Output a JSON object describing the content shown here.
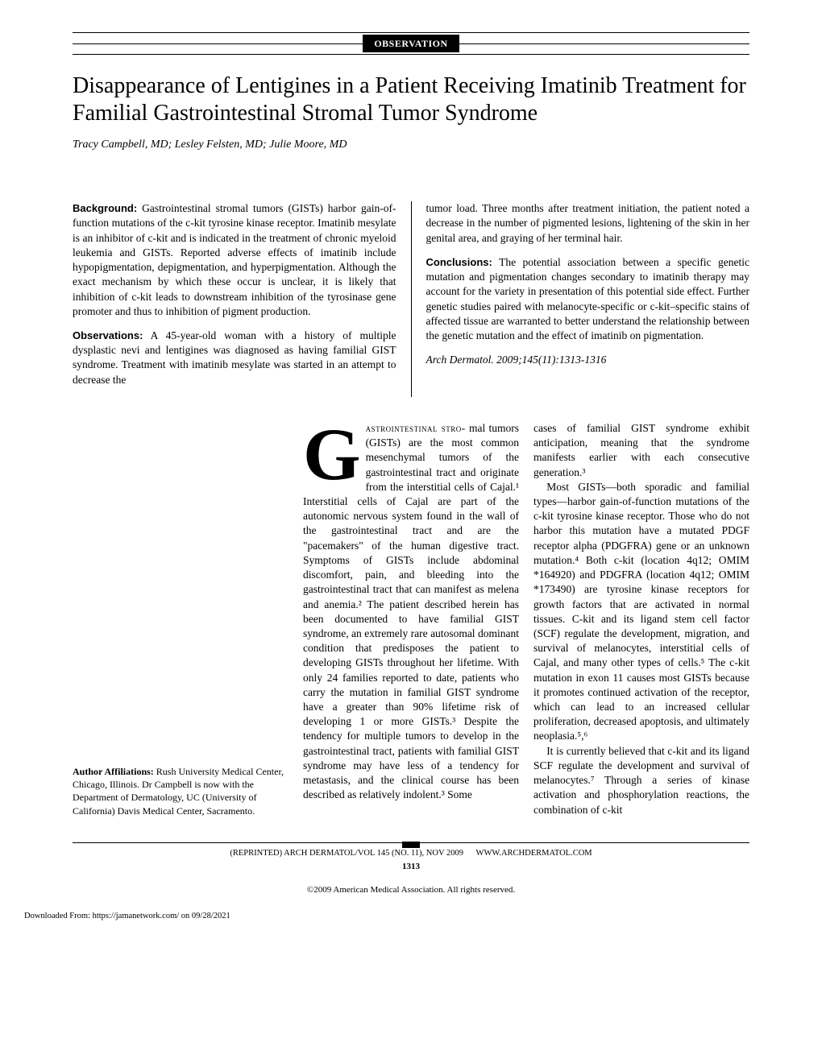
{
  "header": {
    "section_label": "OBSERVATION"
  },
  "title": "Disappearance of Lentigines in a Patient Receiving Imatinib Treatment for Familial Gastrointestinal Stromal Tumor Syndrome",
  "authors": "Tracy Campbell, MD; Lesley Felsten, MD; Julie Moore, MD",
  "abstract": {
    "background_label": "Background:",
    "background": " Gastrointestinal stromal tumors (GISTs) harbor gain-of-function mutations of the c-kit tyrosine kinase receptor. Imatinib mesylate is an inhibitor of c-kit and is indicated in the treatment of chronic myeloid leukemia and GISTs. Reported adverse effects of imatinib include hypopigmentation, depigmentation, and hyperpigmentation. Although the exact mechanism by which these occur is unclear, it is likely that inhibition of c-kit leads to downstream inhibition of the tyrosinase gene promoter and thus to inhibition of pigment production.",
    "observations_label": "Observations:",
    "observations": " A 45-year-old woman with a history of multiple dysplastic nevi and lentigines was diagnosed as having familial GIST syndrome. Treatment with imatinib mesylate was started in an attempt to decrease the",
    "col2_cont": "tumor load. Three months after treatment initiation, the patient noted a decrease in the number of pigmented lesions, lightening of the skin in her genital area, and graying of her terminal hair.",
    "conclusions_label": "Conclusions:",
    "conclusions": " The potential association between a specific genetic mutation and pigmentation changes secondary to imatinib therapy may account for the variety in presentation of this potential side effect. Further genetic studies paired with melanocyte-specific or c-kit–specific stains of affected tissue are warranted to better understand the relationship between the genetic mutation and the effect of imatinib on pigmentation.",
    "citation": "Arch Dermatol. 2009;145(11):1313-1316"
  },
  "affiliations": {
    "label": "Author Affiliations:",
    "text": " Rush University Medical Center, Chicago, Illinois. Dr Campbell is now with the Department of Dermatology, UC (University of California) Davis Medical Center, Sacramento."
  },
  "body": {
    "dropcap": "G",
    "lead_smallcaps": "astrointestinal stro-",
    "col1": "mal tumors (GISTs) are the most common mesenchymal tumors of the gastrointestinal tract and originate from the interstitial cells of Cajal.¹ Interstitial cells of Cajal are part of the autonomic nervous system found in the wall of the gastrointestinal tract and are the \"pacemakers\" of the human digestive tract. Symptoms of GISTs include abdominal discomfort, pain, and bleeding into the gastrointestinal tract that can manifest as melena and anemia.² The patient described herein has been documented to have familial GIST syndrome, an extremely rare autosomal dominant condition that predisposes the patient to developing GISTs throughout her lifetime. With only 24 families reported to date, patients who carry the mutation in familial GIST syndrome have a greater than 90% lifetime risk of developing 1 or more GISTs.³ Despite the tendency for multiple tumors to develop in the gastrointestinal tract, patients with familial GIST syndrome may have less of a tendency for metastasis, and the clinical course has been described as relatively indolent.³ Some",
    "col2_p1": "cases of familial GIST syndrome exhibit anticipation, meaning that the syndrome manifests earlier with each consecutive generation.³",
    "col2_p2": "Most GISTs—both sporadic and familial types—harbor gain-of-function mutations of the c-kit tyrosine kinase receptor. Those who do not harbor this mutation have a mutated PDGF receptor alpha (PDGFRA) gene or an unknown mutation.⁴ Both c-kit (location 4q12; OMIM *164920) and PDGFRA (location 4q12; OMIM *173490) are tyrosine kinase receptors for growth factors that are activated in normal tissues. C-kit and its ligand stem cell factor (SCF) regulate the development, migration, and survival of melanocytes, interstitial cells of Cajal, and many other types of cells.⁵ The c-kit mutation in exon 11 causes most GISTs because it promotes continued activation of the receptor, which can lead to an increased cellular proliferation, decreased apoptosis, and ultimately neoplasia.⁵,⁶",
    "col2_p3": "It is currently believed that c-kit and its ligand SCF regulate the development and survival of melanocytes.⁷ Through a series of kinase activation and phosphorylation reactions, the combination of c-kit"
  },
  "footer": {
    "reprint": "(REPRINTED) ARCH DERMATOL/VOL 145 (NO. 11), NOV 2009",
    "url": "WWW.ARCHDERMATOL.COM",
    "page": "1313",
    "copyright": "©2009 American Medical Association. All rights reserved.",
    "downloaded": "Downloaded From: https://jamanetwork.com/ on 09/28/2021"
  }
}
